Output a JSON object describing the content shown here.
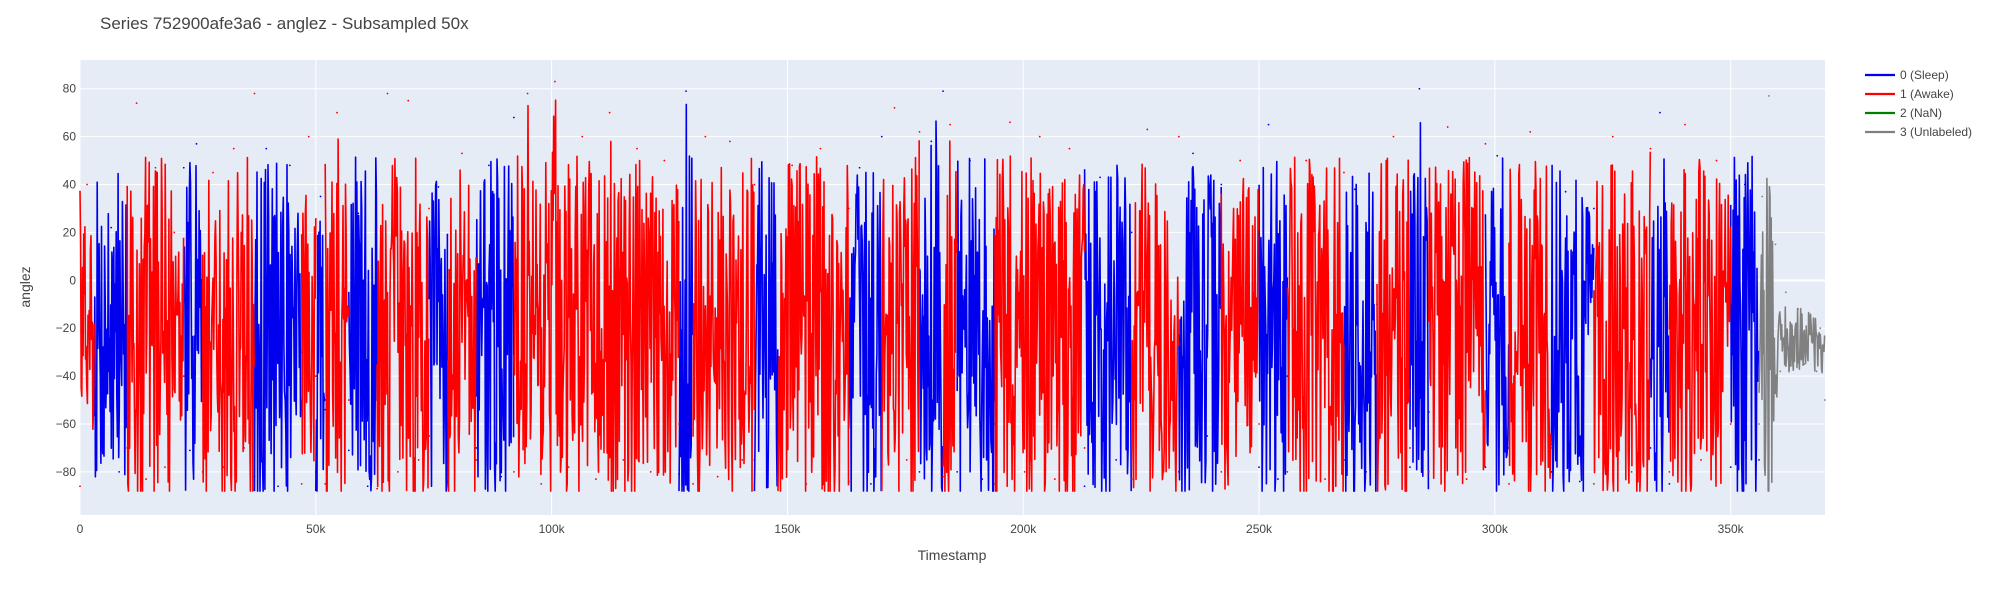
{
  "chart_data": {
    "type": "line",
    "title": "Series 752900afe3a6 - anglez - Subsampled 50x",
    "xlabel": "Timestamp",
    "ylabel": "anglez",
    "xlim": [
      0,
      370000
    ],
    "ylim": [
      -98,
      92
    ],
    "x_ticks": [
      0,
      50000,
      100000,
      150000,
      200000,
      250000,
      300000,
      350000
    ],
    "x_tick_labels": [
      "0",
      "50k",
      "100k",
      "150k",
      "200k",
      "250k",
      "300k",
      "350k"
    ],
    "y_ticks": [
      -80,
      -60,
      -40,
      -20,
      0,
      20,
      40,
      60,
      80
    ],
    "y_tick_labels": [
      "−80",
      "−60",
      "−40",
      "−20",
      "0",
      "20",
      "40",
      "60",
      "80"
    ],
    "grid": true,
    "legend_position": "top-right",
    "background_color": "#e5ecf6",
    "series": [
      {
        "name": "0 (Sleep)",
        "color": "#0000ee",
        "segments": [
          [
            3000,
            10000
          ],
          [
            22000,
            26000
          ],
          [
            37000,
            47000
          ],
          [
            50000,
            52000
          ],
          [
            57000,
            63000
          ],
          [
            74000,
            78000
          ],
          [
            84000,
            92000
          ],
          [
            127000,
            130000
          ],
          [
            143000,
            148000
          ],
          [
            163000,
            170000
          ],
          [
            178000,
            183000
          ],
          [
            186000,
            194000
          ],
          [
            213000,
            223000
          ],
          [
            233000,
            242000
          ],
          [
            250000,
            256000
          ],
          [
            268000,
            275000
          ],
          [
            282000,
            286000
          ],
          [
            298000,
            303000
          ],
          [
            312000,
            321000
          ],
          [
            333000,
            337000
          ],
          [
            350000,
            356000
          ]
        ],
        "points": [
          [
            3000,
            -40
          ],
          [
            4800,
            -62
          ],
          [
            6600,
            22
          ],
          [
            8300,
            -80
          ],
          [
            10000,
            -20
          ],
          [
            22000,
            47
          ],
          [
            23300,
            -71
          ],
          [
            24700,
            57
          ],
          [
            26000,
            -36
          ],
          [
            37000,
            -82
          ],
          [
            39500,
            55
          ],
          [
            42000,
            -86
          ],
          [
            44500,
            48
          ],
          [
            47000,
            -30
          ],
          [
            50000,
            -80
          ],
          [
            51000,
            35
          ],
          [
            52000,
            -54
          ],
          [
            57000,
            -71
          ],
          [
            59000,
            28
          ],
          [
            61000,
            -86
          ],
          [
            63000,
            -40
          ],
          [
            74000,
            -65
          ],
          [
            76000,
            39
          ],
          [
            78000,
            -84
          ],
          [
            84000,
            -70
          ],
          [
            86700,
            48
          ],
          [
            89300,
            -82
          ],
          [
            92000,
            68
          ],
          [
            127000,
            -81
          ],
          [
            128500,
            79
          ],
          [
            130000,
            -60
          ],
          [
            143000,
            -75
          ],
          [
            145500,
            18
          ],
          [
            148000,
            -78
          ],
          [
            163000,
            -84
          ],
          [
            165300,
            47
          ],
          [
            167700,
            -85
          ],
          [
            170000,
            60
          ],
          [
            178000,
            -80
          ],
          [
            180500,
            58
          ],
          [
            183000,
            79
          ],
          [
            186000,
            -80
          ],
          [
            188700,
            50
          ],
          [
            191300,
            -83
          ],
          [
            194000,
            -60
          ],
          [
            213000,
            -86
          ],
          [
            216300,
            43
          ],
          [
            219700,
            -75
          ],
          [
            223000,
            20
          ],
          [
            233000,
            -80
          ],
          [
            236000,
            53
          ],
          [
            239000,
            -65
          ],
          [
            242000,
            40
          ],
          [
            250000,
            -78
          ],
          [
            252000,
            65
          ],
          [
            254000,
            -83
          ],
          [
            256000,
            -40
          ],
          [
            268000,
            -75
          ],
          [
            270300,
            38
          ],
          [
            272700,
            -80
          ],
          [
            275000,
            -10
          ],
          [
            282000,
            -78
          ],
          [
            284000,
            80
          ],
          [
            286000,
            -55
          ],
          [
            298000,
            -78
          ],
          [
            300500,
            52
          ],
          [
            303000,
            -70
          ],
          [
            312000,
            -80
          ],
          [
            315000,
            37
          ],
          [
            318000,
            -84
          ],
          [
            321000,
            30
          ],
          [
            333000,
            -70
          ],
          [
            335000,
            70
          ],
          [
            337000,
            -85
          ],
          [
            350000,
            -78
          ],
          [
            353000,
            40
          ],
          [
            356000,
            -75
          ]
        ]
      },
      {
        "name": "1 (Awake)",
        "color": "#ff0000",
        "segments": [
          [
            0,
            3000
          ],
          [
            10000,
            22000
          ],
          [
            26000,
            37000
          ],
          [
            47000,
            50000
          ],
          [
            52000,
            57000
          ],
          [
            63000,
            74000
          ],
          [
            78000,
            84000
          ],
          [
            92000,
            127000
          ],
          [
            130000,
            143000
          ],
          [
            148000,
            163000
          ],
          [
            170000,
            178000
          ],
          [
            183000,
            186000
          ],
          [
            194000,
            213000
          ],
          [
            223000,
            233000
          ],
          [
            242000,
            250000
          ],
          [
            256000,
            268000
          ],
          [
            275000,
            282000
          ],
          [
            286000,
            298000
          ],
          [
            303000,
            312000
          ],
          [
            321000,
            333000
          ],
          [
            337000,
            350000
          ]
        ],
        "points": [
          [
            0,
            -86
          ],
          [
            1500,
            40
          ],
          [
            3000,
            -30
          ],
          [
            10000,
            -70
          ],
          [
            12000,
            74
          ],
          [
            14000,
            -83
          ],
          [
            16000,
            47
          ],
          [
            18000,
            -78
          ],
          [
            20000,
            20
          ],
          [
            22000,
            -40
          ],
          [
            26000,
            -80
          ],
          [
            28200,
            45
          ],
          [
            30400,
            -78
          ],
          [
            32600,
            55
          ],
          [
            34800,
            -70
          ],
          [
            37000,
            78
          ],
          [
            47000,
            -85
          ],
          [
            48500,
            60
          ],
          [
            50000,
            -40
          ],
          [
            52000,
            -85
          ],
          [
            54500,
            70
          ],
          [
            57000,
            -50
          ],
          [
            63000,
            -87
          ],
          [
            65200,
            78
          ],
          [
            67400,
            -80
          ],
          [
            69600,
            75
          ],
          [
            71800,
            -75
          ],
          [
            74000,
            30
          ],
          [
            78000,
            -80
          ],
          [
            81000,
            53
          ],
          [
            84000,
            -75
          ],
          [
            92000,
            -80
          ],
          [
            94900,
            78
          ],
          [
            97800,
            -85
          ],
          [
            100700,
            83
          ],
          [
            103600,
            -78
          ],
          [
            106500,
            60
          ],
          [
            109400,
            -83
          ],
          [
            112300,
            70
          ],
          [
            115200,
            -75
          ],
          [
            118100,
            55
          ],
          [
            121000,
            -80
          ],
          [
            123900,
            50
          ],
          [
            127000,
            -60
          ],
          [
            130000,
            -85
          ],
          [
            132600,
            60
          ],
          [
            135200,
            -82
          ],
          [
            137800,
            58
          ],
          [
            140400,
            -75
          ],
          [
            143000,
            40
          ],
          [
            148000,
            -75
          ],
          [
            151000,
            48
          ],
          [
            154000,
            -85
          ],
          [
            157000,
            55
          ],
          [
            160000,
            -78
          ],
          [
            163000,
            30
          ],
          [
            170000,
            -82
          ],
          [
            172700,
            72
          ],
          [
            175300,
            -75
          ],
          [
            178000,
            62
          ],
          [
            183000,
            -82
          ],
          [
            184500,
            65
          ],
          [
            186000,
            -40
          ],
          [
            194000,
            -85
          ],
          [
            197200,
            66
          ],
          [
            200300,
            -80
          ],
          [
            203500,
            60
          ],
          [
            206700,
            -83
          ],
          [
            209800,
            55
          ],
          [
            213000,
            -70
          ],
          [
            223000,
            -83
          ],
          [
            226300,
            63
          ],
          [
            229700,
            -78
          ],
          [
            233000,
            60
          ],
          [
            242000,
            -80
          ],
          [
            246000,
            50
          ],
          [
            250000,
            -60
          ],
          [
            256000,
            -80
          ],
          [
            260000,
            50
          ],
          [
            264000,
            -83
          ],
          [
            268000,
            45
          ],
          [
            275000,
            -80
          ],
          [
            278500,
            60
          ],
          [
            282000,
            -70
          ],
          [
            286000,
            -80
          ],
          [
            290000,
            64
          ],
          [
            294000,
            -83
          ],
          [
            298000,
            57
          ],
          [
            303000,
            -85
          ],
          [
            307500,
            62
          ],
          [
            312000,
            -70
          ],
          [
            321000,
            -85
          ],
          [
            325000,
            60
          ],
          [
            329000,
            -80
          ],
          [
            333000,
            55
          ],
          [
            337000,
            -80
          ],
          [
            340300,
            65
          ],
          [
            343700,
            -75
          ],
          [
            347000,
            50
          ],
          [
            350000,
            -60
          ]
        ]
      },
      {
        "name": "2 (NaN)",
        "color": "#008000",
        "segments": [],
        "points": []
      },
      {
        "name": "3 (Unlabeled)",
        "color": "#808080",
        "segments": [
          [
            356000,
            370000
          ]
        ],
        "points": [
          [
            356000,
            -60
          ],
          [
            356700,
            35
          ],
          [
            357400,
            -55
          ],
          [
            358100,
            77
          ],
          [
            358800,
            -45
          ],
          [
            359500,
            15
          ],
          [
            360500,
            -38
          ],
          [
            361700,
            -5
          ],
          [
            363000,
            -32
          ],
          [
            364300,
            -12
          ],
          [
            365600,
            -35
          ],
          [
            366900,
            -15
          ],
          [
            368200,
            -38
          ],
          [
            369000,
            -20
          ],
          [
            370000,
            -50
          ]
        ]
      }
    ]
  }
}
